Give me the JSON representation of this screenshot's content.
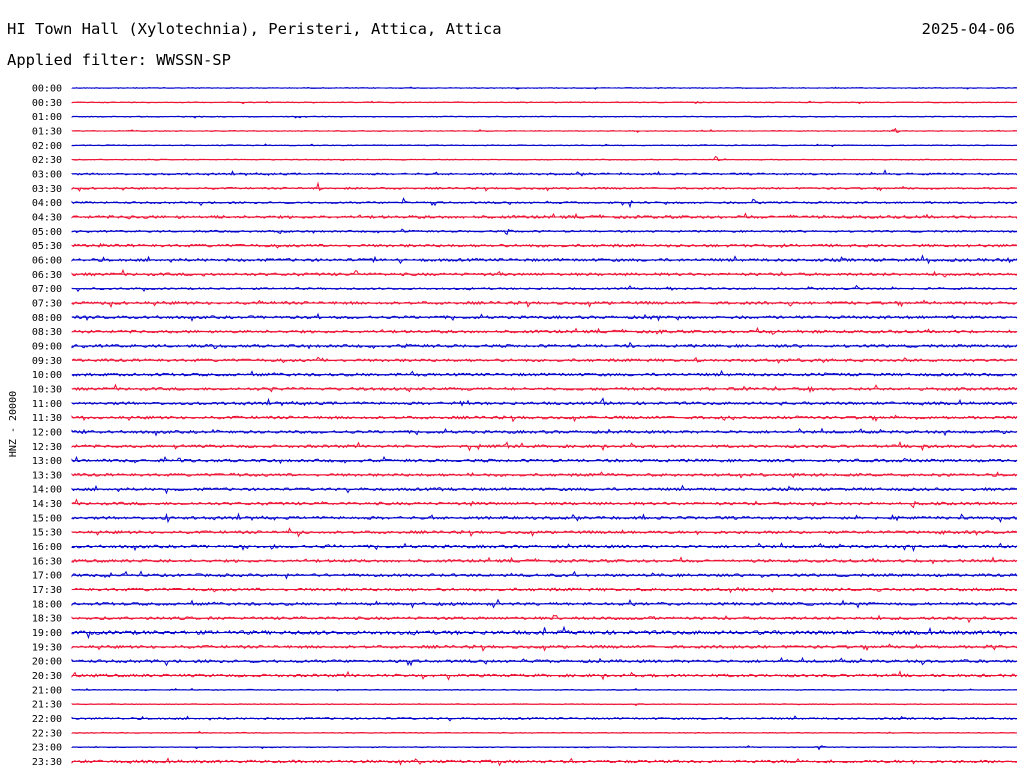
{
  "header": {
    "title": "HI Town Hall (Xylotechnia), Peristeri, Attica, Attica",
    "date": "2025-04-06",
    "filter": "Applied filter: WWSSN-SP"
  },
  "colors": {
    "even_trace": "#0000cc",
    "odd_trace": "#ee1133"
  },
  "chart_data": {
    "type": "line",
    "title": "HI Town Hall (Xylotechnia), Peristeri, Attica, Attica",
    "ylabel": "HNZ - 20000",
    "xlabel": "",
    "grid": false,
    "legend": "none",
    "time_labels": [
      "00:00",
      "00:30",
      "01:00",
      "01:30",
      "02:00",
      "02:30",
      "03:00",
      "03:30",
      "04:00",
      "04:30",
      "05:00",
      "05:30",
      "06:00",
      "06:30",
      "07:00",
      "07:30",
      "08:00",
      "08:30",
      "09:00",
      "09:30",
      "10:00",
      "10:30",
      "11:00",
      "11:30",
      "12:00",
      "12:30",
      "13:00",
      "13:30",
      "14:00",
      "14:30",
      "15:00",
      "15:30",
      "16:00",
      "16:30",
      "17:00",
      "17:30",
      "18:00",
      "18:30",
      "19:00",
      "19:30",
      "20:00",
      "20:30",
      "21:00",
      "21:30",
      "22:00",
      "22:30",
      "23:00",
      "23:30"
    ],
    "noise_level": [
      1,
      1,
      1,
      1,
      1,
      1,
      2,
      2,
      2,
      3,
      2,
      3,
      3,
      3,
      2,
      3,
      3,
      3,
      3,
      3,
      3,
      3,
      3,
      3,
      3,
      3,
      3,
      3,
      3,
      3,
      3,
      3,
      3,
      3,
      3,
      3,
      3,
      3,
      4,
      3,
      3,
      3,
      1,
      1,
      2,
      1,
      1,
      3
    ],
    "events": [
      [],
      [
        [
          0.66,
          2
        ]
      ],
      [],
      [
        [
          0.87,
          3
        ]
      ],
      [],
      [
        [
          0.68,
          3
        ]
      ],
      [
        [
          0.86,
          2
        ]
      ],
      [
        [
          0.26,
          3
        ],
        [
          0.29,
          2
        ]
      ],
      [
        [
          0.35,
          3
        ],
        [
          0.59,
          3
        ],
        [
          0.72,
          3
        ]
      ],
      [
        [
          0.06,
          3
        ],
        [
          0.76,
          3
        ]
      ],
      [
        [
          0.22,
          3
        ],
        [
          0.35,
          3
        ],
        [
          0.46,
          3
        ]
      ],
      [
        [
          0.03,
          2
        ],
        [
          0.61,
          2
        ],
        [
          0.75,
          3
        ]
      ],
      [
        [
          0.32,
          3
        ],
        [
          0.35,
          3
        ],
        [
          0.9,
          3
        ],
        [
          0.99,
          2
        ]
      ],
      [
        [
          0.14,
          2
        ],
        [
          0.3,
          3
        ],
        [
          0.45,
          3
        ],
        [
          0.92,
          3
        ]
      ],
      [
        [
          0.63,
          2
        ],
        [
          0.78,
          3
        ],
        [
          0.83,
          3
        ]
      ],
      [
        [
          0.2,
          3
        ],
        [
          0.76,
          3
        ],
        [
          0.82,
          2
        ],
        [
          0.91,
          2
        ]
      ],
      [
        [
          0.26,
          2
        ],
        [
          0.61,
          3
        ]
      ],
      [
        [
          0.17,
          3
        ],
        [
          0.62,
          3
        ],
        [
          0.74,
          3
        ],
        [
          0.77,
          2
        ],
        [
          0.99,
          2
        ]
      ],
      [
        [
          0.15,
          2
        ],
        [
          0.35,
          3
        ],
        [
          0.59,
          3
        ]
      ],
      [
        [
          0.26,
          2
        ],
        [
          0.66,
          2
        ],
        [
          0.78,
          3
        ],
        [
          0.88,
          3
        ]
      ],
      [
        [
          0.36,
          3
        ],
        [
          0.38,
          3
        ],
        [
          0.79,
          2
        ]
      ],
      [
        [
          0.21,
          2
        ],
        [
          0.47,
          2
        ],
        [
          0.71,
          3
        ],
        [
          0.78,
          3
        ],
        [
          0.85,
          3
        ]
      ],
      [
        [
          0.41,
          3
        ],
        [
          0.56,
          2
        ],
        [
          0.75,
          3
        ]
      ],
      [
        [
          0.01,
          3
        ],
        [
          0.55,
          3
        ],
        [
          0.69,
          3
        ],
        [
          0.76,
          3
        ],
        [
          0.87,
          3
        ]
      ],
      [
        [
          0.01,
          3
        ],
        [
          0.15,
          2
        ],
        [
          0.98,
          3
        ]
      ],
      [
        [
          0.11,
          3
        ],
        [
          0.43,
          3
        ],
        [
          0.46,
          3
        ],
        [
          0.9,
          3
        ]
      ],
      [
        [
          0.11,
          3
        ],
        [
          0.81,
          2
        ],
        [
          0.88,
          2
        ]
      ],
      [
        [
          0.17,
          2
        ],
        [
          0.42,
          3
        ],
        [
          0.56,
          2
        ],
        [
          0.77,
          2
        ],
        [
          0.91,
          3
        ]
      ],
      [
        [
          0.1,
          2
        ],
        [
          0.39,
          3
        ],
        [
          0.92,
          3
        ]
      ],
      [
        [
          0.42,
          3
        ],
        [
          0.78,
          3
        ],
        [
          0.89,
          3
        ]
      ],
      [
        [
          0.1,
          3
        ],
        [
          0.22,
          2
        ],
        [
          0.57,
          2
        ],
        [
          0.87,
          3
        ],
        [
          0.94,
          3
        ]
      ],
      [
        [
          0.23,
          3
        ],
        [
          0.58,
          2
        ],
        [
          0.76,
          2
        ],
        [
          0.92,
          3
        ]
      ],
      [
        [
          0.18,
          3
        ],
        [
          0.21,
          3
        ],
        [
          0.27,
          3
        ],
        [
          0.89,
          3
        ]
      ],
      [
        [
          0.08,
          2
        ],
        [
          0.28,
          2
        ],
        [
          0.91,
          3
        ]
      ],
      [
        [
          0.04,
          2
        ],
        [
          0.46,
          3
        ],
        [
          0.61,
          2
        ],
        [
          0.73,
          2
        ]
      ],
      [
        [
          0.7,
          2
        ],
        [
          0.8,
          3
        ],
        [
          0.85,
          3
        ]
      ],
      [
        [
          0.32,
          2
        ],
        [
          0.59,
          3
        ]
      ],
      [
        [
          0.18,
          3
        ],
        [
          0.51,
          4
        ],
        [
          0.61,
          2
        ],
        [
          0.92,
          2
        ]
      ],
      [
        [
          0.5,
          3
        ],
        [
          0.72,
          2
        ],
        [
          0.98,
          3
        ]
      ],
      [
        [
          0.7,
          3
        ],
        [
          0.89,
          2
        ],
        [
          0.97,
          2
        ]
      ],
      [
        [
          0.48,
          3
        ],
        [
          0.75,
          3
        ],
        [
          0.9,
          3
        ]
      ],
      [
        [
          0.37,
          3
        ]
      ],
      [],
      [],
      [],
      [],
      [
        [
          0.79,
          2
        ]
      ],
      []
    ]
  }
}
